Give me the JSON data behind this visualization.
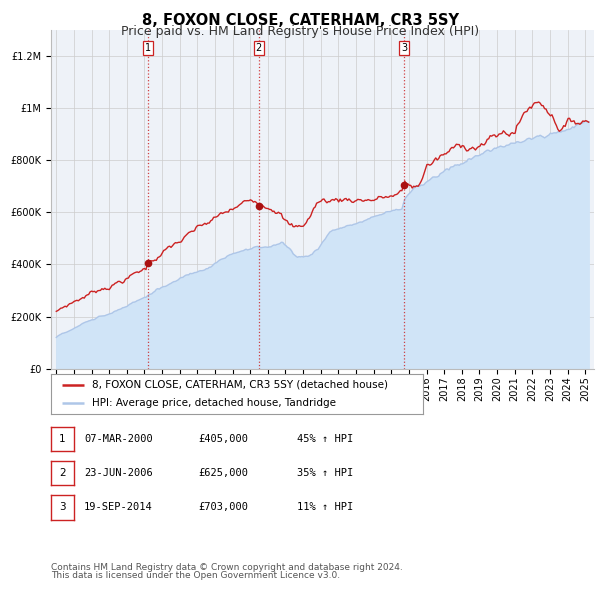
{
  "title": "8, FOXON CLOSE, CATERHAM, CR3 5SY",
  "subtitle": "Price paid vs. HM Land Registry's House Price Index (HPI)",
  "ylim": [
    0,
    1300000
  ],
  "xlim_min": 1994.7,
  "xlim_max": 2025.5,
  "yticks": [
    0,
    200000,
    400000,
    600000,
    800000,
    1000000,
    1200000
  ],
  "ytick_labels": [
    "£0",
    "£200K",
    "£400K",
    "£600K",
    "£800K",
    "£1M",
    "£1.2M"
  ],
  "hpi_color": "#aec6e8",
  "hpi_fill_color": "#d0e4f7",
  "price_color": "#cc2222",
  "dot_color": "#aa1111",
  "plot_bg_color": "#eef2f8",
  "grid_color": "#cccccc",
  "legend_label_red": "8, FOXON CLOSE, CATERHAM, CR3 5SY (detached house)",
  "legend_label_blue": "HPI: Average price, detached house, Tandridge",
  "sale_dates": [
    2000.19,
    2006.48,
    2014.72
  ],
  "sale_prices": [
    405000,
    625000,
    703000
  ],
  "sale_labels": [
    "1",
    "2",
    "3"
  ],
  "table_rows": [
    [
      "1",
      "07-MAR-2000",
      "£405,000",
      "45% ↑ HPI"
    ],
    [
      "2",
      "23-JUN-2006",
      "£625,000",
      "35% ↑ HPI"
    ],
    [
      "3",
      "19-SEP-2014",
      "£703,000",
      "11% ↑ HPI"
    ]
  ],
  "footer_line1": "Contains HM Land Registry data © Crown copyright and database right 2024.",
  "footer_line2": "This data is licensed under the Open Government Licence v3.0.",
  "title_fontsize": 10.5,
  "subtitle_fontsize": 9,
  "tick_fontsize": 7,
  "legend_fontsize": 7.5,
  "table_fontsize": 7.5,
  "footer_fontsize": 6.5
}
